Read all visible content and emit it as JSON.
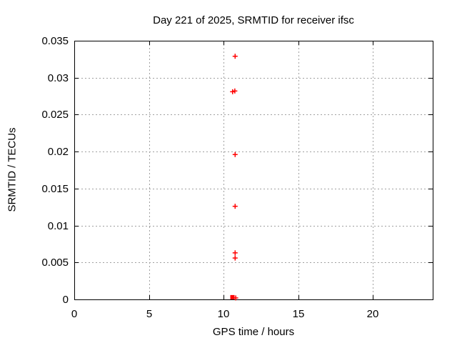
{
  "chart_data": {
    "type": "scatter",
    "title": "Day 221 of 2025, SRMTID for receiver ifsc",
    "xlabel": "GPS time / hours",
    "ylabel": "SRMTID / TECUs",
    "xlim": [
      0,
      24
    ],
    "ylim": [
      0,
      0.035
    ],
    "grid": true,
    "legend": "none",
    "x_ticks": [
      {
        "value": 0,
        "label": "0"
      },
      {
        "value": 5,
        "label": "5"
      },
      {
        "value": 10,
        "label": "10"
      },
      {
        "value": 15,
        "label": "15"
      },
      {
        "value": 20,
        "label": "20"
      }
    ],
    "y_ticks": [
      {
        "value": 0,
        "label": "0"
      },
      {
        "value": 0.005,
        "label": "0.005"
      },
      {
        "value": 0.01,
        "label": "0.01"
      },
      {
        "value": 0.015,
        "label": "0.015"
      },
      {
        "value": 0.02,
        "label": "0.02"
      },
      {
        "value": 0.025,
        "label": "0.025"
      },
      {
        "value": 0.03,
        "label": "0.03"
      },
      {
        "value": 0.035,
        "label": "0.035"
      }
    ],
    "series": [
      {
        "name": "SRMTID",
        "marker": "plus",
        "color": "#ff0000",
        "points": [
          {
            "x": 10.77,
            "y": 0.0329
          },
          {
            "x": 10.6,
            "y": 0.0281
          },
          {
            "x": 10.75,
            "y": 0.0282
          },
          {
            "x": 10.77,
            "y": 0.0196
          },
          {
            "x": 10.77,
            "y": 0.0126
          },
          {
            "x": 10.77,
            "y": 0.0063
          },
          {
            "x": 10.77,
            "y": 0.0056
          },
          {
            "x": 10.59,
            "y": 0.0003,
            "marker": "square"
          },
          {
            "x": 10.81,
            "y": 0.0002
          }
        ]
      }
    ],
    "colors": {
      "marker": "#ff0000",
      "grid": "#a0a0a0",
      "axis": "#000000",
      "background": "#ffffff",
      "text": "#000000"
    }
  }
}
